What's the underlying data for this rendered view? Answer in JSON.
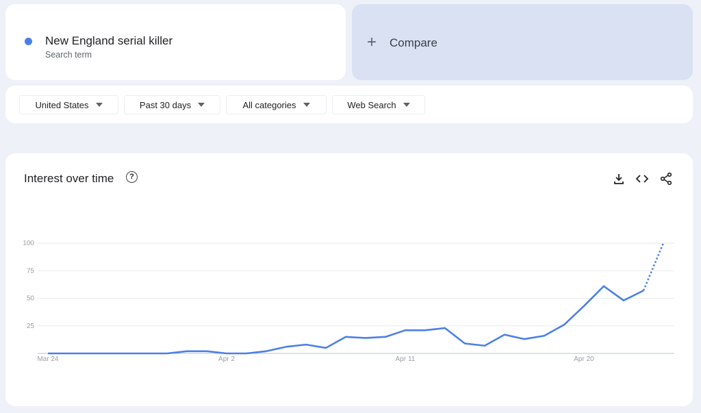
{
  "search_term": {
    "label": "New England serial killer",
    "sublabel": "Search term",
    "color": "#4a7fe8"
  },
  "compare": {
    "icon": "plus-icon",
    "label": "Compare"
  },
  "filters": [
    {
      "label": "United States"
    },
    {
      "label": "Past 30 days"
    },
    {
      "label": "All categories"
    },
    {
      "label": "Web Search"
    }
  ],
  "chart_card": {
    "title": "Interest over time",
    "icons": [
      "help-icon",
      "download-icon",
      "embed-code-icon",
      "share-icon"
    ]
  },
  "chart_data": {
    "type": "line",
    "x": [
      "Mar 24",
      "Mar 25",
      "Mar 26",
      "Mar 27",
      "Mar 28",
      "Mar 29",
      "Mar 30",
      "Mar 31",
      "Apr 1",
      "Apr 2",
      "Apr 3",
      "Apr 4",
      "Apr 5",
      "Apr 6",
      "Apr 7",
      "Apr 8",
      "Apr 9",
      "Apr 10",
      "Apr 11",
      "Apr 12",
      "Apr 13",
      "Apr 14",
      "Apr 15",
      "Apr 16",
      "Apr 17",
      "Apr 18",
      "Apr 19",
      "Apr 20",
      "Apr 21",
      "Apr 22",
      "Apr 23",
      "Apr 24"
    ],
    "series": [
      {
        "values": [
          0,
          0,
          0,
          0,
          0,
          0,
          0,
          2,
          2,
          0,
          0,
          2,
          6,
          8,
          5,
          15,
          14,
          15,
          21,
          21,
          23,
          9,
          7,
          17,
          13,
          16,
          26,
          43,
          61,
          48,
          57,
          100
        ],
        "partial_last_point": true,
        "color": "#4a7fe8"
      }
    ],
    "x_tick_labels": [
      "Mar 24",
      "Apr 2",
      "Apr 11",
      "Apr 20"
    ],
    "y_tick_labels": [
      "25",
      "50",
      "75",
      "100"
    ],
    "ylim": [
      0,
      100
    ],
    "grid": true
  }
}
